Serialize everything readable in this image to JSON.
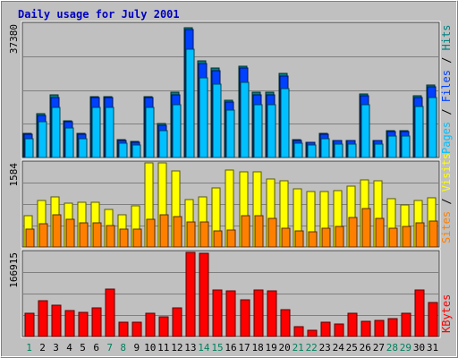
{
  "chart_data": {
    "type": "bar",
    "title": "Daily usage for July 2001",
    "categories": [
      "1",
      "2",
      "3",
      "4",
      "5",
      "6",
      "7",
      "8",
      "9",
      "10",
      "11",
      "12",
      "13",
      "14",
      "15",
      "16",
      "17",
      "18",
      "19",
      "20",
      "21",
      "22",
      "23",
      "24",
      "25",
      "26",
      "27",
      "28",
      "29",
      "30",
      "31"
    ],
    "weekend_days": [
      "1",
      "7",
      "8",
      "14",
      "15",
      "21",
      "22",
      "28",
      "29"
    ],
    "panels": [
      {
        "max_label": "37380",
        "ymax": 37380,
        "legend": [
          {
            "text": "Pages",
            "color": "#00C0FF"
          },
          {
            "text": " / ",
            "color": "#000000"
          },
          {
            "text": "Files",
            "color": "#0040FF"
          },
          {
            "text": " / ",
            "color": "#000000"
          },
          {
            "text": "Hits",
            "color": "#008080"
          }
        ],
        "series": [
          {
            "name": "Hits",
            "color": "#008080",
            "values": [
              6680,
              12260,
              17480,
              10310,
              6680,
              17020,
              17020,
              4920,
              4520,
              17020,
              9430,
              18290,
              36260,
              27050,
              25200,
              16080,
              25640,
              18290,
              18290,
              23620,
              4920,
              4370,
              6680,
              4860,
              4860,
              17890,
              4860,
              7460,
              7460,
              17300,
              20400
            ]
          },
          {
            "name": "Files",
            "color": "#0040FF",
            "values": [
              6470,
              11880,
              16720,
              9980,
              6470,
              16720,
              16720,
              4770,
              4370,
              16720,
              9150,
              17570,
              35870,
              26280,
              24420,
              15600,
              24980,
              17570,
              17570,
              22890,
              4770,
              4240,
              6470,
              4710,
              4710,
              17300,
              4710,
              7230,
              7230,
              16800,
              19800
            ]
          },
          {
            "name": "Pages",
            "color": "#00C0FF",
            "values": [
              5320,
              9970,
              14100,
              8290,
              5320,
              14100,
              14100,
              3890,
              3560,
              14100,
              7580,
              14790,
              30430,
              22240,
              20590,
              13220,
              21120,
              14790,
              14790,
              19370,
              3890,
              3490,
              5320,
              3840,
              3840,
              14680,
              3840,
              6010,
              6010,
              14200,
              16800
            ]
          }
        ]
      },
      {
        "max_label": "1584",
        "ymax": 1584,
        "legend": [
          {
            "text": "Sites",
            "color": "#FF8000"
          },
          {
            "text": " / ",
            "color": "#000000"
          },
          {
            "text": "Visits",
            "color": "#FFFF00"
          }
        ],
        "series": [
          {
            "name": "Visits",
            "color": "#FFFF00",
            "values": [
              590,
              880,
              950,
              820,
              840,
              840,
              710,
              610,
              770,
              1584,
              1584,
              1440,
              900,
              950,
              1120,
              1450,
              1420,
              1420,
              1280,
              1250,
              1090,
              1050,
              1050,
              1060,
              1150,
              1260,
              1240,
              910,
              800,
              880,
              920
            ]
          },
          {
            "name": "Sites",
            "color": "#FF8000",
            "values": [
              340,
              440,
              600,
              530,
              450,
              450,
              410,
              330,
              340,
              520,
              600,
              580,
              480,
              480,
              300,
              320,
              590,
              590,
              540,
              350,
              300,
              280,
              360,
              380,
              560,
              720,
              540,
              360,
              390,
              450,
              490
            ]
          }
        ]
      },
      {
        "max_label": "166915",
        "ymax": 166915,
        "legend": [
          {
            "text": "KBytes",
            "color": "#FF0000"
          }
        ],
        "series": [
          {
            "name": "KBytes",
            "color": "#FF0000",
            "values": [
              46500,
              71300,
              62100,
              51600,
              47600,
              56900,
              94200,
              28500,
              28500,
              46500,
              38300,
              56900,
              166915,
              165000,
              93200,
              91200,
              73400,
              93200,
              91200,
              53900,
              19200,
              12100,
              28500,
              25000,
              46500,
              30500,
              32400,
              34800,
              46500,
              93200,
              67200
            ]
          }
        ]
      }
    ]
  }
}
